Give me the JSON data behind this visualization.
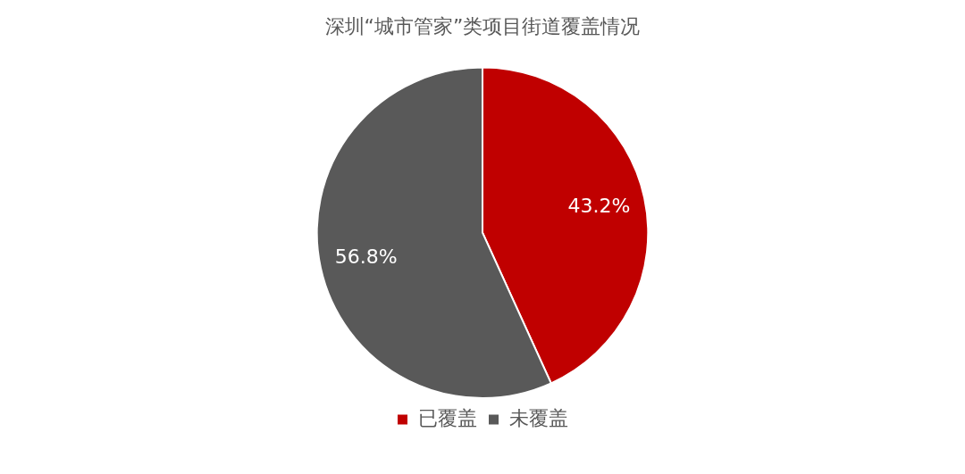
{
  "chart_data": {
    "type": "pie",
    "title": "深圳“城市管家”类项目街道覆盖情况",
    "categories": [
      "已覆盖",
      "未覆盖"
    ],
    "values": [
      43.2,
      56.8
    ],
    "colors": [
      "#c00000",
      "#595959"
    ],
    "value_labels": [
      "43.2%",
      "56.8%"
    ],
    "legend": "bottom"
  }
}
